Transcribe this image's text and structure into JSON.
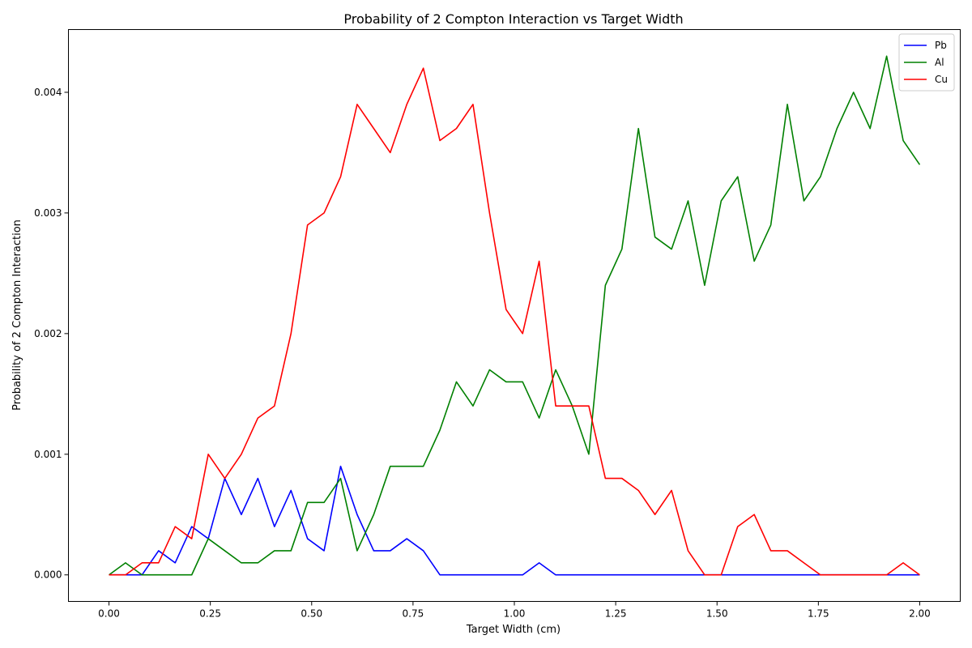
{
  "chart_data": {
    "type": "line",
    "title": "Probability of 2 Compton Interaction vs Target Width",
    "xlabel": "Target Width (cm)",
    "ylabel": "Probability of 2 Compton Interaction",
    "xlim": [
      -0.1,
      2.1
    ],
    "ylim": [
      -0.00022,
      0.00452
    ],
    "x_ticks": [
      0.0,
      0.25,
      0.5,
      0.75,
      1.0,
      1.25,
      1.5,
      1.75,
      2.0
    ],
    "x_tick_labels": [
      "0.00",
      "0.25",
      "0.50",
      "0.75",
      "1.00",
      "1.25",
      "1.50",
      "1.75",
      "2.00"
    ],
    "y_ticks": [
      0.0,
      0.001,
      0.002,
      0.003,
      0.004
    ],
    "y_tick_labels": [
      "0.000",
      "0.001",
      "0.002",
      "0.003",
      "0.004"
    ],
    "grid": false,
    "legend_position": "top-right",
    "x": [
      0.0,
      0.0408,
      0.0816,
      0.1224,
      0.1633,
      0.2041,
      0.2449,
      0.2857,
      0.3265,
      0.3673,
      0.4082,
      0.449,
      0.4898,
      0.5306,
      0.5714,
      0.6122,
      0.6531,
      0.6939,
      0.7347,
      0.7755,
      0.8163,
      0.8571,
      0.898,
      0.9388,
      0.9796,
      1.0204,
      1.0612,
      1.102,
      1.1429,
      1.1837,
      1.2245,
      1.2653,
      1.3061,
      1.3469,
      1.3878,
      1.4286,
      1.4694,
      1.5102,
      1.551,
      1.5918,
      1.6327,
      1.6735,
      1.7143,
      1.7551,
      1.7959,
      1.8367,
      1.8776,
      1.9184,
      1.9592,
      2.0
    ],
    "series": [
      {
        "name": "Pb",
        "color": "#0000ff",
        "values": [
          0.0,
          0.0,
          0.0,
          0.0002,
          0.0001,
          0.0004,
          0.0003,
          0.0008,
          0.0005,
          0.0008,
          0.0004,
          0.0007,
          0.0003,
          0.0002,
          0.0009,
          0.0005,
          0.0002,
          0.0002,
          0.0003,
          0.0002,
          0.0,
          0.0,
          0.0,
          0.0,
          0.0,
          0.0,
          0.0001,
          0.0,
          0.0,
          0.0,
          0.0,
          0.0,
          0.0,
          0.0,
          0.0,
          0.0,
          0.0,
          0.0,
          0.0,
          0.0,
          0.0,
          0.0,
          0.0,
          0.0,
          0.0,
          0.0,
          0.0,
          0.0,
          0.0,
          0.0
        ]
      },
      {
        "name": "Al",
        "color": "#008000",
        "values": [
          0.0,
          0.0001,
          0.0,
          0.0,
          0.0,
          0.0,
          0.0003,
          0.0002,
          0.0001,
          0.0001,
          0.0002,
          0.0002,
          0.0006,
          0.0006,
          0.0008,
          0.0002,
          0.0005,
          0.0009,
          0.0009,
          0.0009,
          0.0012,
          0.0016,
          0.0014,
          0.0017,
          0.0016,
          0.0016,
          0.0013,
          0.0017,
          0.0014,
          0.001,
          0.0024,
          0.0027,
          0.0037,
          0.0028,
          0.0027,
          0.0031,
          0.0024,
          0.0031,
          0.0033,
          0.0026,
          0.0029,
          0.0039,
          0.0031,
          0.0033,
          0.0037,
          0.004,
          0.0037,
          0.0043,
          0.0036,
          0.0034
        ]
      },
      {
        "name": "Cu",
        "color": "#ff0000",
        "values": [
          0.0,
          0.0,
          0.0001,
          0.0001,
          0.0004,
          0.0003,
          0.001,
          0.0008,
          0.001,
          0.0013,
          0.0014,
          0.002,
          0.0029,
          0.003,
          0.0033,
          0.0039,
          0.0037,
          0.0035,
          0.0039,
          0.0042,
          0.0036,
          0.0037,
          0.0039,
          0.003,
          0.0022,
          0.002,
          0.0026,
          0.0014,
          0.0014,
          0.0014,
          0.0008,
          0.0008,
          0.0007,
          0.0005,
          0.0007,
          0.0002,
          0.0,
          0.0,
          0.0004,
          0.0005,
          0.0002,
          0.0002,
          0.0001,
          0.0,
          0.0,
          0.0,
          0.0,
          0.0,
          0.0001,
          0.0
        ]
      }
    ]
  }
}
